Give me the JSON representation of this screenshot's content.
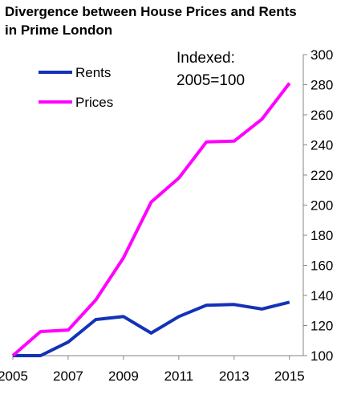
{
  "chart_data": {
    "type": "line",
    "title_lines": [
      "Divergence between House Prices and Rents",
      "in Prime London"
    ],
    "annotation_lines": [
      "Indexed:",
      "2005=100"
    ],
    "x": [
      2005,
      2006,
      2007,
      2008,
      2009,
      2010,
      2011,
      2012,
      2013,
      2014,
      2015
    ],
    "x_tick_labels": [
      "2005",
      "2007",
      "2009",
      "2011",
      "2013",
      "2015"
    ],
    "y_tick_labels": [
      "100",
      "120",
      "140",
      "160",
      "180",
      "200",
      "220",
      "240",
      "260",
      "280",
      "300"
    ],
    "xlim": [
      2005,
      2015.5
    ],
    "ylim": [
      100,
      300
    ],
    "grid": false,
    "legend_position": "top-left",
    "series": [
      {
        "name": "Rents",
        "color": "#1332B7",
        "values": [
          100,
          100,
          109,
          124,
          126,
          115,
          126,
          133.5,
          134,
          131,
          135.5
        ]
      },
      {
        "name": "Prices",
        "color": "#FF00FF",
        "values": [
          100,
          116,
          117,
          137,
          165,
          202,
          218,
          242,
          242.5,
          257,
          281
        ]
      }
    ]
  }
}
